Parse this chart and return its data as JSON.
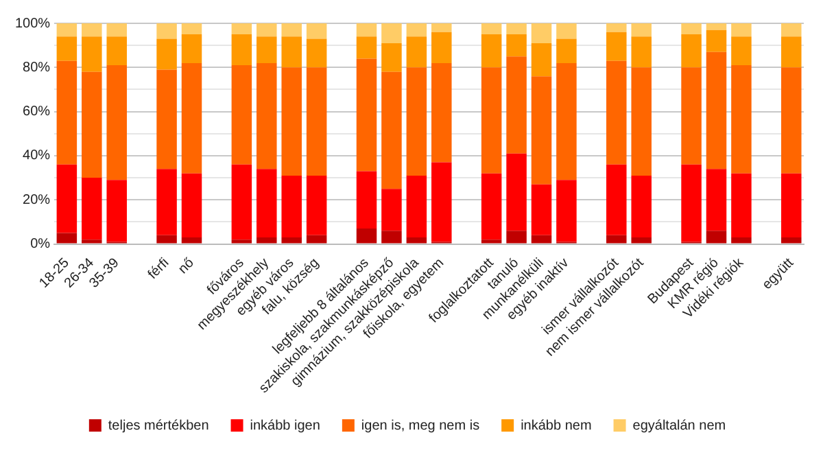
{
  "chart_data": {
    "type": "bar",
    "stacked": true,
    "categories": [
      "18-25",
      "26-34",
      "35-39",
      null,
      "férfi",
      "nő",
      null,
      "főváros",
      "megyeszékhely",
      "egyéb város",
      "falu, község",
      null,
      "legfeljebb 8 általános",
      "szakiskola, szakmunkásképző",
      "gimnázium, szakközépiskola",
      "főiskola, egyetem",
      null,
      "foglalkoztatott",
      "tanuló",
      "munkanélküli",
      "egyéb inaktív",
      null,
      "ismer vállalkozót",
      "nem ismer vállalkozót",
      null,
      "Budapest",
      "KMR régió",
      "Vidéki régiók",
      null,
      "együtt"
    ],
    "series": [
      {
        "name": "teljes mértékben",
        "color": "#c00000",
        "values": [
          5,
          2,
          1,
          null,
          4,
          3,
          null,
          2,
          3,
          3,
          4,
          null,
          7,
          6,
          3,
          1,
          null,
          2,
          6,
          4,
          1,
          null,
          4,
          3,
          null,
          1,
          6,
          3,
          null,
          3
        ]
      },
      {
        "name": "inkább igen",
        "color": "#ff0000",
        "values": [
          31,
          28,
          28,
          null,
          30,
          29,
          null,
          34,
          31,
          28,
          27,
          null,
          26,
          19,
          28,
          36,
          null,
          30,
          35,
          23,
          28,
          null,
          32,
          28,
          null,
          35,
          28,
          29,
          null,
          29
        ]
      },
      {
        "name": "igen is, meg nem is",
        "color": "#ff6600",
        "values": [
          47,
          48,
          52,
          null,
          45,
          50,
          null,
          45,
          48,
          49,
          49,
          null,
          51,
          53,
          49,
          45,
          null,
          48,
          44,
          49,
          53,
          null,
          47,
          49,
          null,
          44,
          53,
          49,
          null,
          48
        ]
      },
      {
        "name": "inkább nem",
        "color": "#ff9900",
        "values": [
          11,
          16,
          13,
          null,
          14,
          13,
          null,
          14,
          12,
          14,
          13,
          null,
          10,
          13,
          14,
          14,
          null,
          15,
          10,
          15,
          11,
          null,
          13,
          14,
          null,
          15,
          10,
          13,
          null,
          14
        ]
      },
      {
        "name": "egyáltalán nem",
        "color": "#ffcc66",
        "values": [
          6,
          6,
          6,
          null,
          7,
          5,
          null,
          5,
          6,
          6,
          7,
          null,
          6,
          9,
          6,
          4,
          null,
          5,
          5,
          9,
          7,
          null,
          4,
          6,
          null,
          5,
          3,
          6,
          null,
          6
        ]
      }
    ],
    "ylim": [
      0,
      100
    ],
    "yticks": [
      {
        "value": 0,
        "label": "0%"
      },
      {
        "value": 10,
        "label": null
      },
      {
        "value": 20,
        "label": "20%"
      },
      {
        "value": 30,
        "label": null
      },
      {
        "value": 40,
        "label": "40%"
      },
      {
        "value": 50,
        "label": null
      },
      {
        "value": 60,
        "label": "60%"
      },
      {
        "value": 70,
        "label": null
      },
      {
        "value": 80,
        "label": "80%"
      },
      {
        "value": 90,
        "label": null
      },
      {
        "value": 100,
        "label": "100%"
      }
    ],
    "grid": "y",
    "legend": "bottom"
  }
}
